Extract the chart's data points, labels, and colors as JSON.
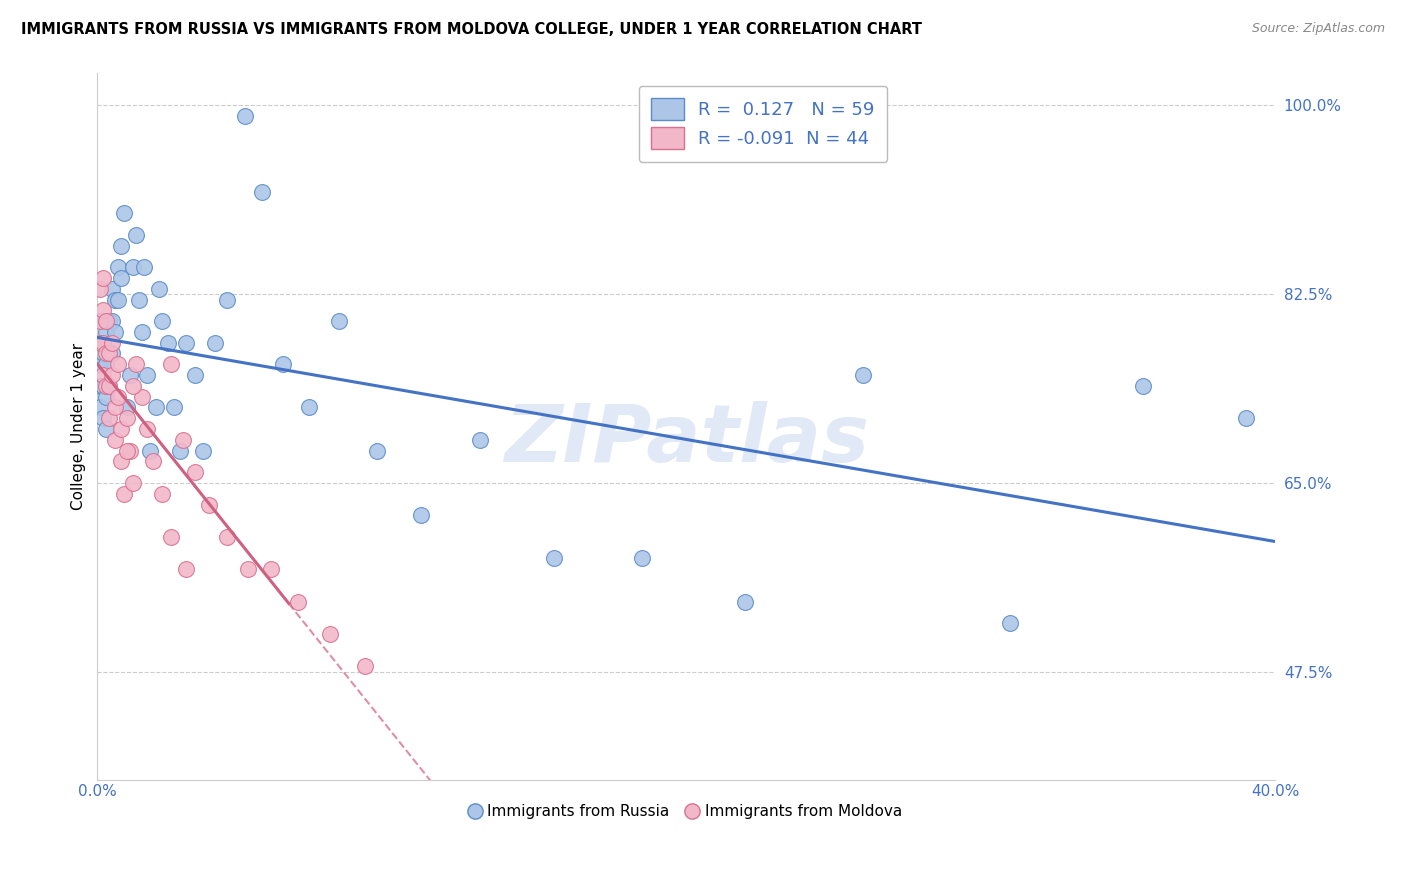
{
  "title": "IMMIGRANTS FROM RUSSIA VS IMMIGRANTS FROM MOLDOVA COLLEGE, UNDER 1 YEAR CORRELATION CHART",
  "source": "Source: ZipAtlas.com",
  "ylabel": "College, Under 1 year",
  "xlim": [
    0.0,
    0.4
  ],
  "ylim": [
    0.375,
    1.03
  ],
  "ytick_labels": [
    "100.0%",
    "82.5%",
    "65.0%",
    "47.5%"
  ],
  "ytick_values": [
    1.0,
    0.825,
    0.65,
    0.475
  ],
  "xtick_labels": [
    "0.0%",
    "40.0%"
  ],
  "xtick_values": [
    0.0,
    0.4
  ],
  "russia_r": 0.127,
  "russia_n": 59,
  "moldova_r": -0.091,
  "moldova_n": 44,
  "russia_color": "#adc6e8",
  "russia_edge_color": "#5b8cc8",
  "russia_line_color": "#4472c4",
  "moldova_color": "#f2b8ca",
  "moldova_edge_color": "#d87090",
  "moldova_line_color": "#d06080",
  "tick_color": "#4472c4",
  "grid_color": "#cccccc",
  "watermark": "ZIPatlas",
  "watermark_color": "#c8d8ee",
  "legend_russia_label": "Immigrants from Russia",
  "legend_moldova_label": "Immigrants from Moldova",
  "russia_x": [
    0.001,
    0.001,
    0.001,
    0.002,
    0.002,
    0.002,
    0.002,
    0.003,
    0.003,
    0.003,
    0.003,
    0.004,
    0.004,
    0.004,
    0.005,
    0.005,
    0.005,
    0.006,
    0.006,
    0.007,
    0.007,
    0.008,
    0.008,
    0.009,
    0.01,
    0.011,
    0.012,
    0.013,
    0.014,
    0.015,
    0.016,
    0.017,
    0.018,
    0.02,
    0.021,
    0.022,
    0.024,
    0.026,
    0.028,
    0.03,
    0.033,
    0.036,
    0.04,
    0.044,
    0.05,
    0.056,
    0.063,
    0.072,
    0.082,
    0.095,
    0.11,
    0.13,
    0.155,
    0.185,
    0.22,
    0.26,
    0.31,
    0.355,
    0.39
  ],
  "russia_y": [
    0.76,
    0.74,
    0.72,
    0.8,
    0.77,
    0.74,
    0.71,
    0.79,
    0.76,
    0.73,
    0.7,
    0.8,
    0.77,
    0.74,
    0.83,
    0.8,
    0.77,
    0.82,
    0.79,
    0.85,
    0.82,
    0.87,
    0.84,
    0.9,
    0.72,
    0.75,
    0.85,
    0.88,
    0.82,
    0.79,
    0.85,
    0.75,
    0.68,
    0.72,
    0.83,
    0.8,
    0.78,
    0.72,
    0.68,
    0.78,
    0.75,
    0.68,
    0.78,
    0.82,
    0.99,
    0.92,
    0.76,
    0.72,
    0.8,
    0.68,
    0.62,
    0.69,
    0.58,
    0.58,
    0.54,
    0.75,
    0.52,
    0.74,
    0.71
  ],
  "moldova_x": [
    0.001,
    0.001,
    0.001,
    0.002,
    0.002,
    0.002,
    0.002,
    0.003,
    0.003,
    0.003,
    0.004,
    0.004,
    0.004,
    0.005,
    0.005,
    0.006,
    0.006,
    0.007,
    0.007,
    0.008,
    0.008,
    0.009,
    0.01,
    0.011,
    0.012,
    0.013,
    0.015,
    0.017,
    0.019,
    0.022,
    0.025,
    0.029,
    0.033,
    0.038,
    0.044,
    0.051,
    0.059,
    0.068,
    0.079,
    0.091,
    0.01,
    0.012,
    0.025,
    0.03
  ],
  "moldova_y": [
    0.83,
    0.8,
    0.78,
    0.84,
    0.81,
    0.78,
    0.75,
    0.8,
    0.77,
    0.74,
    0.77,
    0.74,
    0.71,
    0.78,
    0.75,
    0.72,
    0.69,
    0.76,
    0.73,
    0.7,
    0.67,
    0.64,
    0.71,
    0.68,
    0.65,
    0.76,
    0.73,
    0.7,
    0.67,
    0.64,
    0.76,
    0.69,
    0.66,
    0.63,
    0.6,
    0.57,
    0.57,
    0.54,
    0.51,
    0.48,
    0.68,
    0.74,
    0.6,
    0.57
  ]
}
